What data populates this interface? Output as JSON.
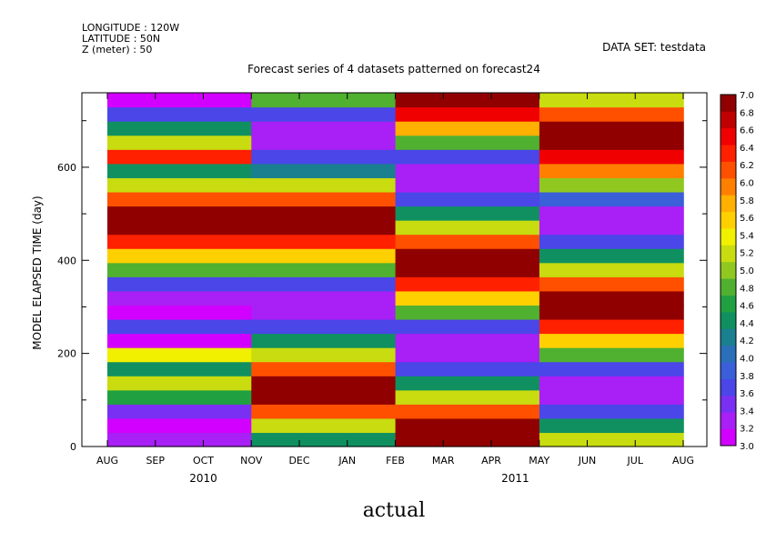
{
  "header": {
    "info_lines": [
      "LONGITUDE : 120W",
      "LATITUDE : 50N",
      "Z (meter) : 50"
    ],
    "dataset": "DATA SET: testdata",
    "title": "Forecast series of 4 datasets patterned on forecast24"
  },
  "footer_label": "actual",
  "chart_data": {
    "type": "heatmap",
    "title": "Forecast series of 4 datasets patterned on forecast24",
    "ylabel": "MODEL ELAPSED TIME (day)",
    "xlabel": "",
    "x_tick_labels": [
      "AUG",
      "SEP",
      "OCT",
      "NOV",
      "DEC",
      "JAN",
      "FEB",
      "MAR",
      "APR",
      "MAY",
      "JUN",
      "JUL",
      "AUG"
    ],
    "x_year_labels": [
      "2010",
      "2011"
    ],
    "y_tick_labels": [
      "0",
      "200",
      "400",
      "600"
    ],
    "ylim": [
      0,
      760
    ],
    "colorbar": {
      "labels": [
        "3.0",
        "3.2",
        "3.4",
        "3.6",
        "3.8",
        "4.0",
        "4.2",
        "4.4",
        "4.6",
        "4.8",
        "5.0",
        "5.2",
        "5.4",
        "5.6",
        "5.8",
        "6.0",
        "6.2",
        "6.4",
        "6.6",
        "6.8",
        "7.0"
      ],
      "range": [
        3.0,
        7.0
      ],
      "colors": [
        "#d100ff",
        "#a820f5",
        "#7a30f2",
        "#4a46e8",
        "#3a5fd8",
        "#2a6fb8",
        "#1a7f8f",
        "#109060",
        "#20a040",
        "#50b030",
        "#90c820",
        "#c8dc10",
        "#f0f000",
        "#ffd000",
        "#ffb000",
        "#ff8000",
        "#ff5000",
        "#ff2000",
        "#f00000",
        "#c00000",
        "#900000"
      ]
    },
    "series": [
      {
        "x_range": [
          "AUG 2010",
          "NOV 2010"
        ],
        "values": [
          3.2,
          3.0,
          3.4,
          4.6,
          5.2,
          4.4,
          5.4,
          3.0,
          3.6,
          3.0,
          3.2,
          3.6,
          4.8,
          5.6,
          6.4,
          6.9,
          6.9,
          6.2,
          5.2,
          4.4,
          6.4,
          5.2,
          4.4,
          3.6,
          3.0
        ]
      },
      {
        "x_range": [
          "NOV 2010",
          "FEB 2011"
        ],
        "values": [
          4.4,
          5.2,
          6.2,
          6.9,
          6.9,
          6.2,
          5.2,
          4.4,
          3.6,
          3.2,
          3.2,
          3.6,
          4.8,
          5.6,
          6.4,
          6.9,
          6.9,
          6.2,
          5.2,
          4.2,
          3.6,
          3.2,
          3.2,
          3.6,
          4.8
        ]
      },
      {
        "x_range": [
          "FEB 2011",
          "MAY 2011"
        ],
        "values": [
          6.9,
          6.9,
          6.2,
          5.2,
          4.4,
          3.6,
          3.2,
          3.2,
          3.6,
          4.8,
          5.6,
          6.4,
          6.9,
          6.9,
          6.2,
          5.2,
          4.4,
          3.6,
          3.2,
          3.2,
          3.6,
          4.8,
          5.8,
          6.6,
          6.9
        ]
      },
      {
        "x_range": [
          "MAY 2011",
          "AUG 2011"
        ],
        "values": [
          5.2,
          4.4,
          3.6,
          3.2,
          3.2,
          3.6,
          4.8,
          5.6,
          6.4,
          6.9,
          6.9,
          6.2,
          5.2,
          4.4,
          3.6,
          3.2,
          3.2,
          3.8,
          5.0,
          6.0,
          6.6,
          6.9,
          6.9,
          6.2,
          5.2
        ]
      }
    ]
  }
}
